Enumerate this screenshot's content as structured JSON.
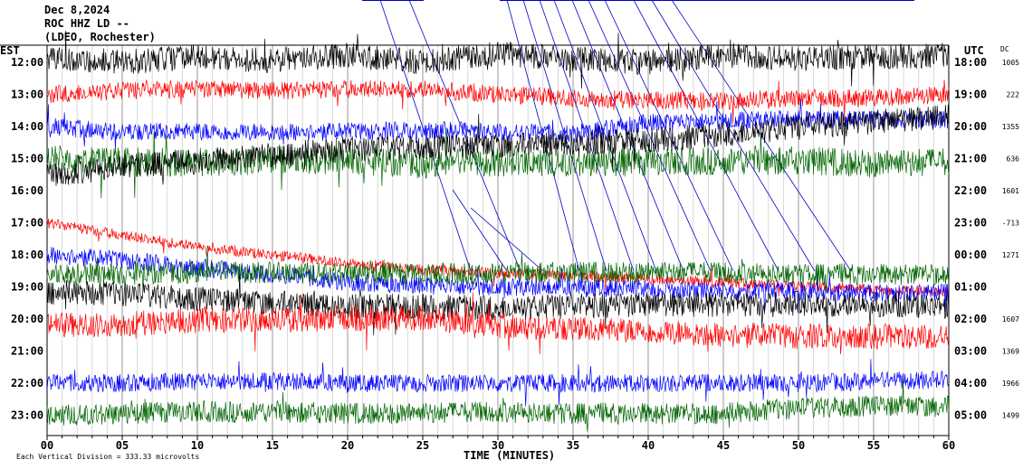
{
  "header": {
    "date": "Dec 8,2024",
    "station": "ROC HHZ LD --",
    "network": "(LDEO, Rochester)"
  },
  "left_axis_title": "EST",
  "right_axis_title": "UTC",
  "dc_title": "DC",
  "footer": {
    "x_axis_title": "TIME (MINUTES)",
    "scale_note": "Each Vertical Division = 333.33 microvolts"
  },
  "colors": {
    "black": "#000000",
    "red": "#ff0000",
    "blue": "#0000ff",
    "green": "#006400",
    "event": "#0000cc"
  },
  "chart_data": {
    "type": "line",
    "title": "",
    "xlabel": "TIME (MINUTES)",
    "xlim": [
      0,
      60
    ],
    "x_ticks": [
      "00",
      "05",
      "10",
      "15",
      "20",
      "25",
      "30",
      "35",
      "40",
      "45",
      "50",
      "55",
      "60"
    ],
    "grid": "vertical every minute",
    "series": [
      {
        "est": "12:00",
        "utc": "18:00",
        "dc": "1005",
        "color": "black",
        "amplitude": 14,
        "drift": [
          -6,
          0,
          -6,
          -2,
          -8,
          0,
          -10,
          -4,
          0,
          -8,
          -4,
          -6,
          -8
        ]
      },
      {
        "est": "13:00",
        "utc": "19:00",
        "dc": "222",
        "color": "red",
        "amplitude": 10,
        "drift": [
          0,
          -4,
          -6,
          -4,
          -6,
          -6,
          0,
          4,
          6,
          8,
          4,
          4,
          0
        ]
      },
      {
        "est": "14:00",
        "utc": "20:00",
        "dc": "1355",
        "color": "blue",
        "amplitude": 10,
        "drift": [
          0,
          6,
          6,
          6,
          6,
          4,
          6,
          8,
          -4,
          -6,
          -8,
          -8,
          -8
        ]
      },
      {
        "est": "15:00",
        "utc": "21:00",
        "dc": "636",
        "color": "green",
        "amplitude": 16,
        "drift": [
          0,
          4,
          4,
          2,
          2,
          6,
          4,
          4,
          4,
          2,
          2,
          6,
          4
        ]
      },
      {
        "est": "16:00",
        "utc": "22:00",
        "dc": "1601",
        "color": "black",
        "amplitude": 14,
        "drift": [
          -16,
          -28,
          -32,
          -40,
          -46,
          -48,
          -50,
          -52,
          -56,
          -62,
          -70,
          -76,
          -82
        ]
      },
      {
        "est": "17:00",
        "utc": "23:00",
        "dc": "-713",
        "color": "red",
        "amplitude": 6,
        "drift": [
          0,
          14,
          26,
          36,
          44,
          52,
          56,
          58,
          62,
          66,
          70,
          74,
          76
        ]
      },
      {
        "est": "18:00",
        "utc": "00:00",
        "dc": "1271",
        "color": "blue",
        "amplitude": 10,
        "drift": [
          0,
          6,
          14,
          22,
          30,
          34,
          36,
          36,
          38,
          40,
          40,
          42,
          42
        ]
      },
      {
        "est": "19:00",
        "utc": "01:00",
        "dc": "",
        "color": "green",
        "amplitude": 12,
        "drift": [
          -14,
          -14,
          -16,
          -16,
          -16,
          -14,
          -16,
          -16,
          -16,
          -16,
          -14,
          -14,
          -14
        ]
      },
      {
        "est": "20:00",
        "utc": "02:00",
        "dc": "1607",
        "color": "black",
        "amplitude": 14,
        "drift": [
          -30,
          -28,
          -22,
          -18,
          -14,
          -14,
          -12,
          -14,
          -16,
          -16,
          -16,
          -16,
          -14
        ]
      },
      {
        "est": "21:00",
        "utc": "03:00",
        "dc": "1369",
        "color": "red",
        "amplitude": 14,
        "drift": [
          -28,
          -30,
          -34,
          -34,
          -36,
          -36,
          -28,
          -24,
          -22,
          -18,
          -16,
          -16,
          -16
        ]
      },
      {
        "est": "22:00",
        "utc": "04:00",
        "dc": "1966",
        "color": "blue",
        "amplitude": 10,
        "drift": [
          0,
          0,
          -2,
          -2,
          0,
          0,
          0,
          0,
          0,
          0,
          0,
          -2,
          -4
        ]
      },
      {
        "est": "23:00",
        "utc": "05:00",
        "dc": "1499",
        "color": "green",
        "amplitude": 12,
        "drift": [
          0,
          -2,
          -4,
          -4,
          -2,
          -2,
          -4,
          -2,
          -2,
          -2,
          -8,
          -10,
          -10
        ]
      }
    ]
  }
}
